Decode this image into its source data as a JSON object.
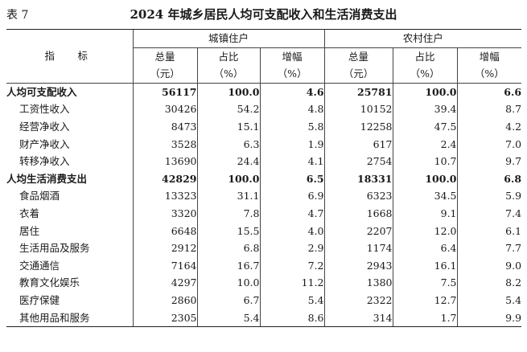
{
  "caption": {
    "label": "表 7",
    "title": "2024 年城乡居民人均可支配收入和生活消费支出"
  },
  "header": {
    "indicator": "指　标",
    "urban": "城镇住户",
    "rural": "农村住户",
    "cols": [
      {
        "name": "总量",
        "unit": "（元）"
      },
      {
        "name": "占比",
        "unit": "（%）"
      },
      {
        "name": "增幅",
        "unit": "（%）"
      },
      {
        "name": "总量",
        "unit": "（元）"
      },
      {
        "name": "占比",
        "unit": "（%）"
      },
      {
        "name": "增幅",
        "unit": "（%）"
      }
    ]
  },
  "rows": [
    {
      "name": "人均可支配收入",
      "bold": true,
      "values": [
        "56117",
        "100.0",
        "4.6",
        "25781",
        "100.0",
        "6.6"
      ]
    },
    {
      "name": "工资性收入",
      "bold": false,
      "values": [
        "30426",
        "54.2",
        "4.8",
        "10152",
        "39.4",
        "8.7"
      ]
    },
    {
      "name": "经营净收入",
      "bold": false,
      "values": [
        "8473",
        "15.1",
        "5.8",
        "12258",
        "47.5",
        "4.2"
      ]
    },
    {
      "name": "财产净收入",
      "bold": false,
      "values": [
        "3528",
        "6.3",
        "1.9",
        "617",
        "2.4",
        "7.0"
      ]
    },
    {
      "name": "转移净收入",
      "bold": false,
      "values": [
        "13690",
        "24.4",
        "4.1",
        "2754",
        "10.7",
        "9.7"
      ]
    },
    {
      "name": "人均生活消费支出",
      "bold": true,
      "values": [
        "42829",
        "100.0",
        "6.5",
        "18331",
        "100.0",
        "6.8"
      ]
    },
    {
      "name": "食品烟酒",
      "bold": false,
      "values": [
        "13323",
        "31.1",
        "6.9",
        "6323",
        "34.5",
        "5.9"
      ]
    },
    {
      "name": "衣着",
      "bold": false,
      "values": [
        "3320",
        "7.8",
        "4.7",
        "1668",
        "9.1",
        "7.4"
      ]
    },
    {
      "name": "居住",
      "bold": false,
      "values": [
        "6648",
        "15.5",
        "4.0",
        "2207",
        "12.0",
        "6.1"
      ]
    },
    {
      "name": "生活用品及服务",
      "bold": false,
      "values": [
        "2912",
        "6.8",
        "2.9",
        "1174",
        "6.4",
        "7.7"
      ]
    },
    {
      "name": "交通通信",
      "bold": false,
      "values": [
        "7164",
        "16.7",
        "7.2",
        "2943",
        "16.1",
        "9.0"
      ]
    },
    {
      "name": "教育文化娱乐",
      "bold": false,
      "values": [
        "4297",
        "10.0",
        "11.2",
        "1380",
        "7.5",
        "8.2"
      ]
    },
    {
      "name": "医疗保健",
      "bold": false,
      "values": [
        "2860",
        "6.7",
        "5.4",
        "2322",
        "12.7",
        "5.4"
      ]
    },
    {
      "name": "其他用品和服务",
      "bold": false,
      "values": [
        "2305",
        "5.4",
        "8.6",
        "314",
        "1.7",
        "9.9"
      ]
    }
  ]
}
